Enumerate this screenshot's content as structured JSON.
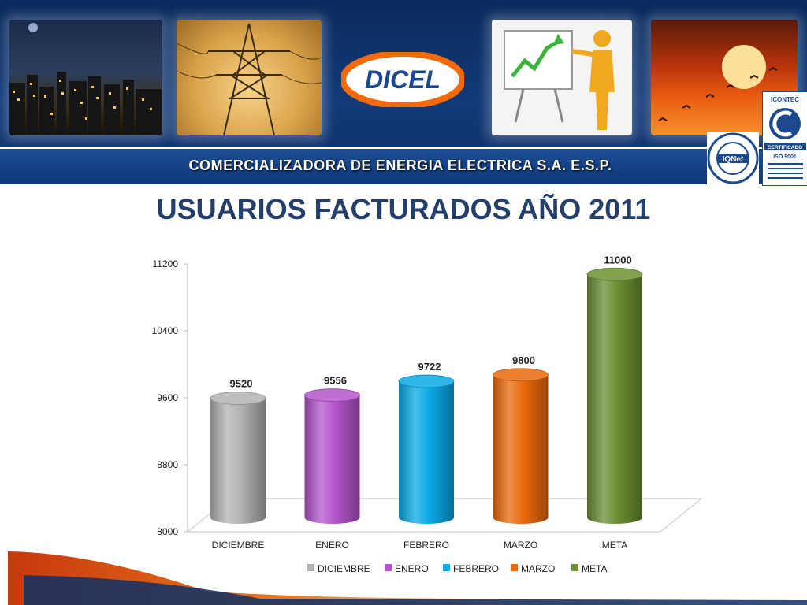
{
  "header": {
    "company": "COMERCIALIZADORA DE ENERGIA ELECTRICA S.A. E.S.P.",
    "logo_text": "DICEL"
  },
  "certifications": {
    "icontec": "ICONTEC",
    "certificado": "CERTIFICADO",
    "iso": "ISO 9001",
    "iqnet": "IQNet"
  },
  "page": {
    "title": "USUARIOS FACTURADOS AÑO 2011"
  },
  "chart_data": {
    "type": "bar",
    "title": "USUARIOS FACTURADOS AÑO 2011",
    "categories": [
      "DICIEMBRE",
      "ENERO",
      "FEBRERO",
      "MARZO",
      "META"
    ],
    "values": [
      9520,
      9556,
      9722,
      9800,
      11000
    ],
    "value_labels": [
      "9520",
      "9556",
      "9722",
      "9800",
      "11000"
    ],
    "colors": [
      "#b3b3b3",
      "#b455cc",
      "#0aaae6",
      "#ea6a0b",
      "#6b8f31"
    ],
    "ylim": [
      8000,
      11200
    ],
    "yticks": [
      8000,
      8800,
      9600,
      10400,
      11200
    ],
    "ytick_labels": [
      "8000",
      "8800",
      "9600",
      "10400",
      "11200"
    ],
    "legend": [
      "DICIEMBRE",
      "ENERO",
      "FEBRERO",
      "MARZO",
      "META"
    ],
    "legend_position": "bottom",
    "grid": false,
    "style": "3d-cylinder"
  }
}
